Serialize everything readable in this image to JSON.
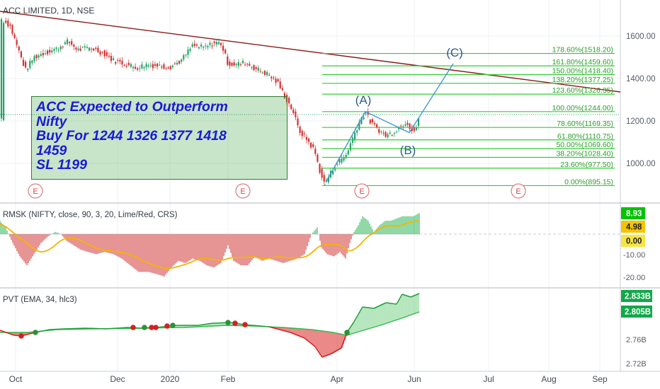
{
  "chart_data": [
    {
      "panel": "price",
      "type": "candlestick",
      "title": "ACC LIMITED, 1D, NSE",
      "y_axis": {
        "ticks": [
          1000,
          1200,
          1400,
          1600
        ],
        "range": [
          860,
          1740
        ],
        "labels": [
          "1000.00",
          "1200.00",
          "1400.00",
          "1600.00"
        ]
      },
      "x_axis": {
        "labels": [
          "Oct",
          "Dec",
          "2020",
          "Feb",
          "Apr",
          "Jun",
          "Jul",
          "Aug",
          "Sep"
        ]
      },
      "approx_close_path": [
        {
          "month": "Oct",
          "close": 1600
        },
        {
          "month": "Nov",
          "close": 1460
        },
        {
          "month": "Dec",
          "close": 1440
        },
        {
          "month": "2020",
          "close": 1460
        },
        {
          "month": "Jan-mid",
          "close": 1560
        },
        {
          "month": "Feb",
          "close": 1450
        },
        {
          "month": "Mar",
          "close": 1280
        },
        {
          "month": "Mar-end",
          "close": 900
        },
        {
          "month": "Apr-mid",
          "close": 1245
        },
        {
          "month": "May",
          "close": 1150
        },
        {
          "month": "May-end",
          "close": 1235
        }
      ],
      "fib_levels": [
        {
          "label": "178.60%(1518.20)",
          "value": 1518.2
        },
        {
          "label": "161.80%(1459.60)",
          "value": 1459.6
        },
        {
          "label": "150.00%(1418.40)",
          "value": 1418.4
        },
        {
          "label": "138.20%(1377.25)",
          "value": 1377.25
        },
        {
          "label": "123.60%(1326.35)",
          "value": 1326.35
        },
        {
          "label": "100.00%(1244.00)",
          "value": 1244.0
        },
        {
          "label": "78.60%(1169.35)",
          "value": 1169.35
        },
        {
          "label": "61.80%(1110.75)",
          "value": 1110.75
        },
        {
          "label": "50.00%(1069.60)",
          "value": 1069.6
        },
        {
          "label": "38.20%(1028.40)",
          "value": 1028.4
        },
        {
          "label": "23.60%(977.50)",
          "value": 977.5
        },
        {
          "label": "0.00%(895.15)",
          "value": 895.15
        }
      ],
      "wave_labels": [
        "(A)",
        "(B)",
        "(C)"
      ],
      "earnings_markers": [
        "E",
        "E",
        "E",
        "E"
      ],
      "annotation": [
        "ACC Expected to Outperform",
        "Nifty",
        "Buy For 1244 1326 1377 1418",
        "1459",
        "SL 1199"
      ]
    },
    {
      "panel": "rmsk",
      "type": "histogram",
      "title": "RMSK (NIFTY, close, 90, 3, 20, Lime/Red, CRS)",
      "y_axis": {
        "ticks": [
          -10,
          -20
        ],
        "labels": [
          "-10.00",
          "-20.00"
        ]
      },
      "value_badges": [
        {
          "label": "8.93",
          "color": "#00c400"
        },
        {
          "label": "4.98",
          "color": "#f5c400"
        },
        {
          "label": "0.00",
          "color": "#f5e642"
        }
      ]
    },
    {
      "panel": "pvt",
      "type": "area",
      "title": "PVT (EMA, 34, hlc3)",
      "y_axis": {
        "labels": [
          "2.76B",
          "2.72B"
        ]
      },
      "value_badges": [
        {
          "label": "2.833B",
          "color": "#11a84a"
        },
        {
          "label": "2.805B",
          "color": "#11a84a"
        }
      ]
    }
  ]
}
